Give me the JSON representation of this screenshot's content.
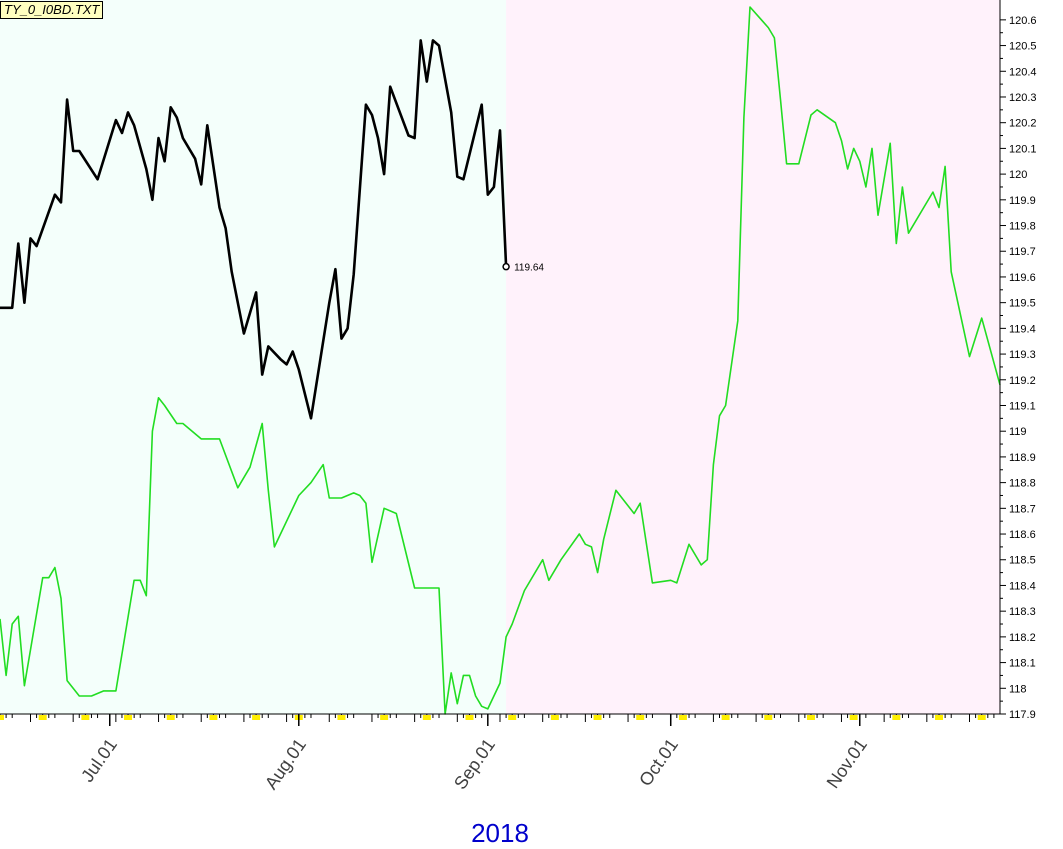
{
  "file_label": "TY_0_I0BD.TXT",
  "chart_data": {
    "type": "line",
    "xlabel": "2018",
    "x_tick_labels": [
      "Jul.01",
      "Aug.01",
      "Sep.01",
      "Oct.01",
      "Nov.01"
    ],
    "y_tick_labels": [
      "120.6",
      "120.5",
      "120.4",
      "120.3",
      "120.2",
      "120.1",
      "120",
      "119.9",
      "119.8",
      "119.7",
      "119.6",
      "119.5",
      "119.4",
      "119.3",
      "119.2",
      "119.1",
      "119",
      "118.9",
      "118.8",
      "118.7",
      "118.6",
      "118.5",
      "118.4",
      "118.3",
      "118.2",
      "118.1",
      "118",
      "117.9"
    ],
    "ylim": [
      117.9,
      120.65
    ],
    "x_axis": {
      "start": "2018-06-13",
      "end": "2018-11-24"
    },
    "last_value_label": "119.64",
    "colors": {
      "current": "#000000",
      "overlay": "#22dd22",
      "region_past": "#f4fffb",
      "region_future": "#fff2fb",
      "year_label": "#0000cc",
      "tick_yellow": "#ffee00"
    },
    "series": [
      {
        "role": "current",
        "x": [
          "2018-06-13",
          "2018-06-15",
          "2018-06-16",
          "2018-06-17",
          "2018-06-18",
          "2018-06-19",
          "2018-06-22",
          "2018-06-23",
          "2018-06-24",
          "2018-06-25",
          "2018-06-26",
          "2018-06-29",
          "2018-07-02",
          "2018-07-03",
          "2018-07-04",
          "2018-07-05",
          "2018-07-07",
          "2018-07-08",
          "2018-07-09",
          "2018-07-10",
          "2018-07-11",
          "2018-07-12",
          "2018-07-13",
          "2018-07-15",
          "2018-07-16",
          "2018-07-17",
          "2018-07-19",
          "2018-07-20",
          "2018-07-21",
          "2018-07-23",
          "2018-07-25",
          "2018-07-26",
          "2018-07-27",
          "2018-07-29",
          "2018-07-30",
          "2018-07-31",
          "2018-08-01",
          "2018-08-03",
          "2018-08-06",
          "2018-08-07",
          "2018-08-08",
          "2018-08-09",
          "2018-08-10",
          "2018-08-12",
          "2018-08-13",
          "2018-08-14",
          "2018-08-15",
          "2018-08-16",
          "2018-08-19",
          "2018-08-20",
          "2018-08-21",
          "2018-08-22",
          "2018-08-23",
          "2018-08-24",
          "2018-08-26",
          "2018-08-27",
          "2018-08-28",
          "2018-08-31",
          "2018-09-01",
          "2018-09-02",
          "2018-09-03",
          "2018-09-04"
        ],
        "y": [
          119.48,
          119.48,
          119.73,
          119.5,
          119.75,
          119.72,
          119.92,
          119.89,
          120.29,
          120.09,
          120.09,
          119.98,
          120.21,
          120.16,
          120.24,
          120.19,
          120.02,
          119.9,
          120.14,
          120.05,
          120.26,
          120.22,
          120.14,
          120.06,
          119.96,
          120.19,
          119.87,
          119.79,
          119.62,
          119.38,
          119.54,
          119.22,
          119.33,
          119.28,
          119.26,
          119.31,
          119.24,
          119.05,
          119.5,
          119.63,
          119.36,
          119.4,
          119.61,
          120.27,
          120.23,
          120.14,
          120.0,
          120.34,
          120.15,
          120.14,
          120.52,
          120.36,
          120.52,
          120.5,
          120.24,
          119.99,
          119.98,
          120.27,
          119.92,
          119.95,
          120.17,
          119.64
        ]
      },
      {
        "role": "overlay",
        "x": [
          "2018-06-13",
          "2018-06-14",
          "2018-06-15",
          "2018-06-16",
          "2018-06-17",
          "2018-06-18",
          "2018-06-20",
          "2018-06-21",
          "2018-06-22",
          "2018-06-23",
          "2018-06-24",
          "2018-06-26",
          "2018-06-28",
          "2018-06-30",
          "2018-07-02",
          "2018-07-05",
          "2018-07-06",
          "2018-07-07",
          "2018-07-08",
          "2018-07-09",
          "2018-07-10",
          "2018-07-12",
          "2018-07-13",
          "2018-07-16",
          "2018-07-19",
          "2018-07-22",
          "2018-07-24",
          "2018-07-26",
          "2018-07-27",
          "2018-07-28",
          "2018-08-01",
          "2018-08-03",
          "2018-08-05",
          "2018-08-06",
          "2018-08-08",
          "2018-08-10",
          "2018-08-11",
          "2018-08-12",
          "2018-08-13",
          "2018-08-15",
          "2018-08-17",
          "2018-08-20",
          "2018-08-24",
          "2018-08-25",
          "2018-08-26",
          "2018-08-27",
          "2018-08-28",
          "2018-08-29",
          "2018-08-30",
          "2018-08-31",
          "2018-09-01",
          "2018-09-03",
          "2018-09-04",
          "2018-09-05",
          "2018-09-07",
          "2018-09-10",
          "2018-09-11",
          "2018-09-13",
          "2018-09-16",
          "2018-09-17",
          "2018-09-18",
          "2018-09-19",
          "2018-09-20",
          "2018-09-22",
          "2018-09-25",
          "2018-09-26",
          "2018-09-28",
          "2018-10-01",
          "2018-10-02",
          "2018-10-04",
          "2018-10-06",
          "2018-10-07",
          "2018-10-08",
          "2018-10-09",
          "2018-10-10",
          "2018-10-12",
          "2018-10-13",
          "2018-10-14",
          "2018-10-17",
          "2018-10-18",
          "2018-10-19",
          "2018-10-20",
          "2018-10-22",
          "2018-10-24",
          "2018-10-25",
          "2018-10-28",
          "2018-10-29",
          "2018-10-30",
          "2018-10-31",
          "2018-11-01",
          "2018-11-02",
          "2018-11-03",
          "2018-11-04",
          "2018-11-06",
          "2018-11-07",
          "2018-11-08",
          "2018-11-09",
          "2018-11-13",
          "2018-11-14",
          "2018-11-15",
          "2018-11-16",
          "2018-11-19",
          "2018-11-21",
          "2018-11-24"
        ],
        "y": [
          118.27,
          118.05,
          118.25,
          118.28,
          118.01,
          118.15,
          118.43,
          118.43,
          118.47,
          118.35,
          118.03,
          117.97,
          117.97,
          117.99,
          117.99,
          118.42,
          118.42,
          118.36,
          119.0,
          119.13,
          119.1,
          119.03,
          119.03,
          118.97,
          118.97,
          118.78,
          118.86,
          119.03,
          118.77,
          118.55,
          118.75,
          118.8,
          118.87,
          118.74,
          118.74,
          118.76,
          118.75,
          118.72,
          118.49,
          118.7,
          118.68,
          118.39,
          118.39,
          117.9,
          118.06,
          117.94,
          118.05,
          118.05,
          117.97,
          117.93,
          117.92,
          118.02,
          118.2,
          118.25,
          118.38,
          118.5,
          118.42,
          118.5,
          118.6,
          118.56,
          118.55,
          118.45,
          118.58,
          118.77,
          118.68,
          118.72,
          118.41,
          118.42,
          118.41,
          118.56,
          118.48,
          118.5,
          118.87,
          119.06,
          119.1,
          119.43,
          120.22,
          120.65,
          120.57,
          120.53,
          120.29,
          120.04,
          120.04,
          120.23,
          120.25,
          120.2,
          120.13,
          120.02,
          120.1,
          120.05,
          119.95,
          120.1,
          119.84,
          120.12,
          119.73,
          119.95,
          119.77,
          119.93,
          119.87,
          120.03,
          119.62,
          119.29,
          119.44,
          119.18
        ]
      }
    ]
  }
}
